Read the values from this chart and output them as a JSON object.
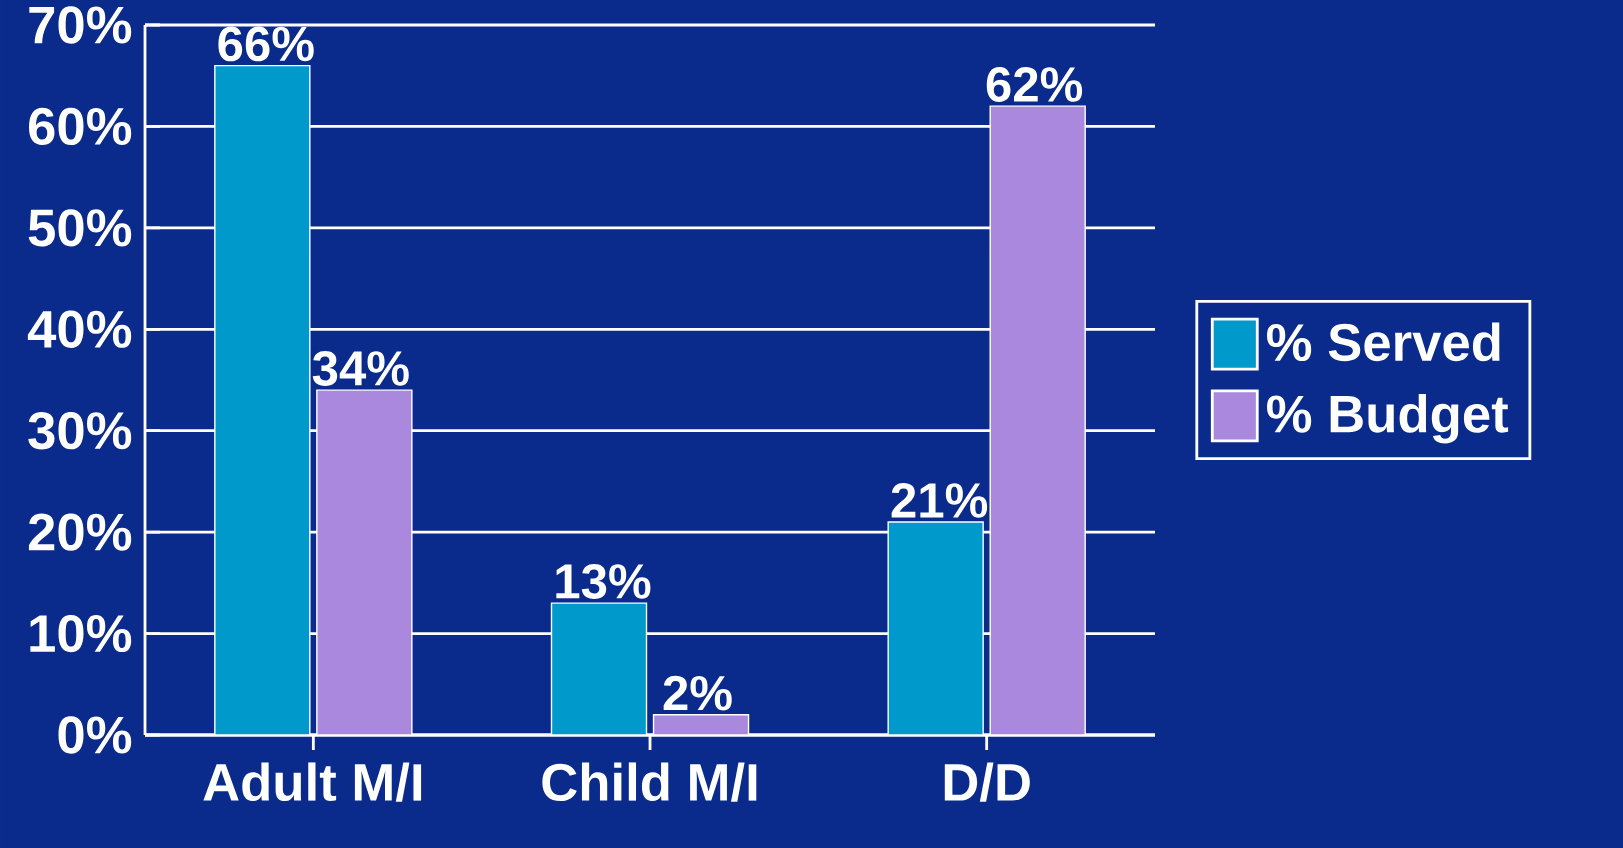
{
  "chart_data": {
    "type": "bar",
    "categories": [
      "Adult M/I",
      "Child M/I",
      "D/D"
    ],
    "series": [
      {
        "name": "% Served",
        "color": "#0099cc",
        "values": [
          66,
          13,
          21
        ],
        "value_labels": [
          "66%",
          "13%",
          "21%"
        ]
      },
      {
        "name": "% Budget",
        "color": "#aa88dd",
        "values": [
          34,
          2,
          62
        ],
        "value_labels": [
          "34%",
          "2%",
          "62%"
        ]
      }
    ],
    "ylim": [
      0,
      70
    ],
    "yticks": [
      {
        "value": 0,
        "label": "0%"
      },
      {
        "value": 10,
        "label": "10%"
      },
      {
        "value": 20,
        "label": "20%"
      },
      {
        "value": 30,
        "label": "30%"
      },
      {
        "value": 40,
        "label": "40%"
      },
      {
        "value": 50,
        "label": "50%"
      },
      {
        "value": 60,
        "label": "60%"
      },
      {
        "value": 70,
        "label": "70%"
      }
    ],
    "grid": "y",
    "legend": "right"
  }
}
